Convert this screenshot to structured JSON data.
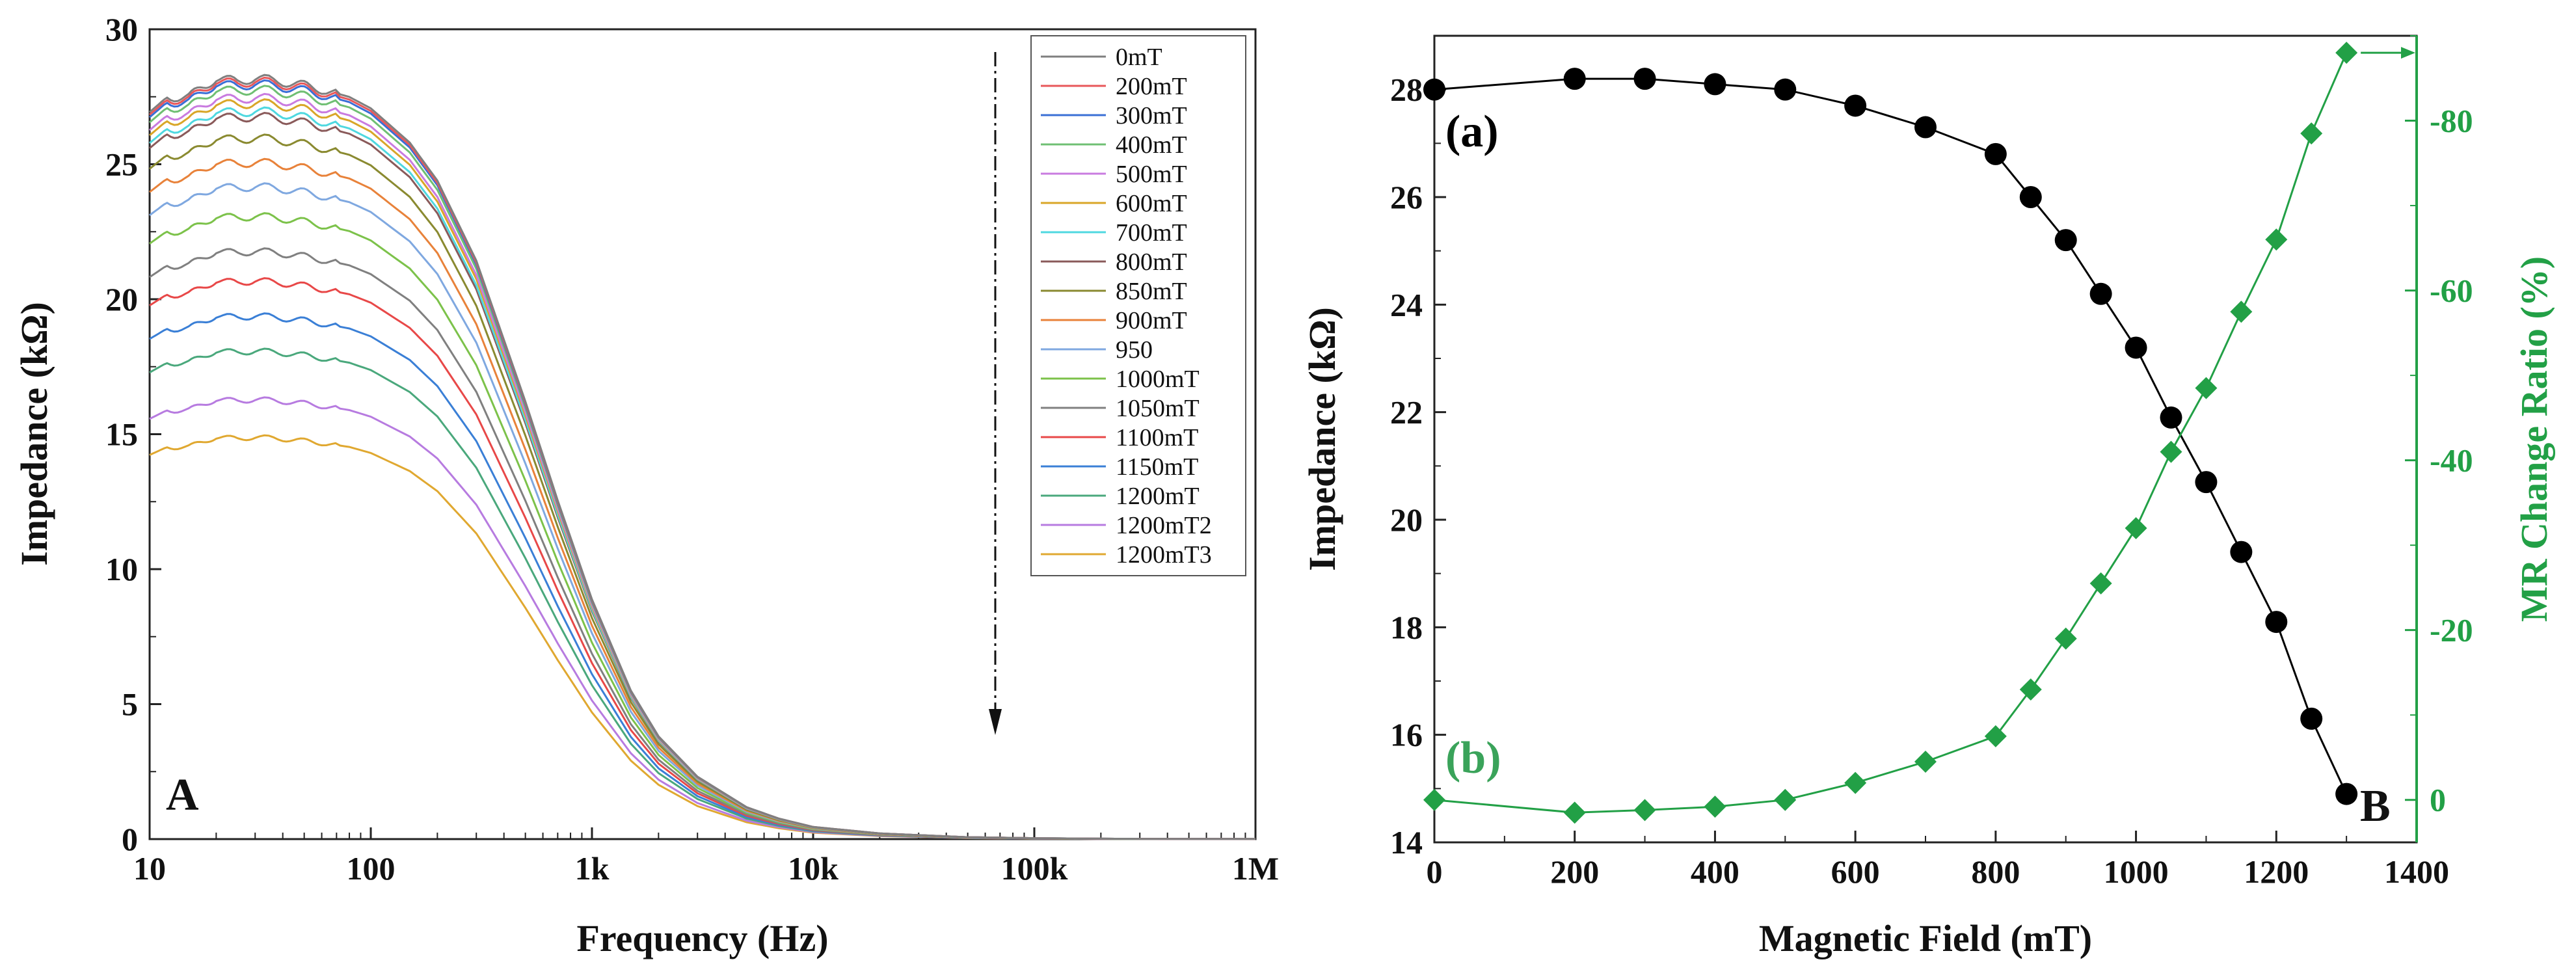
{
  "chart_data": [
    {
      "id": "A",
      "type": "line",
      "panel_label": "A",
      "xlabel": "Frequency (Hz)",
      "ylabel": "Impedance (kΩ)",
      "xscale": "log",
      "xlim": [
        10,
        1000000
      ],
      "ylim": [
        0,
        30
      ],
      "xticks": [
        {
          "value": 10,
          "label": "10"
        },
        {
          "value": 100,
          "label": "100"
        },
        {
          "value": 1000,
          "label": "1k"
        },
        {
          "value": 10000,
          "label": "10k"
        },
        {
          "value": 100000,
          "label": "100k"
        },
        {
          "value": 1000000,
          "label": "1M"
        }
      ],
      "yticks": [
        0,
        5,
        10,
        15,
        20,
        25,
        30
      ],
      "legend_position": "top-right",
      "arrow_direction": "down",
      "x": [
        10,
        12,
        15,
        18,
        20,
        25,
        30,
        40,
        50,
        60,
        80,
        100,
        150,
        200,
        300,
        500,
        700,
        1000,
        1500,
        2000,
        3000,
        5000,
        7000,
        10000,
        20000,
        50000,
        100000,
        200000,
        500000,
        1000000
      ],
      "shape": [
        0.955,
        0.975,
        0.975,
        0.99,
        1.0,
        0.995,
        1.0,
        0.995,
        0.99,
        0.985,
        0.975,
        0.96,
        0.915,
        0.865,
        0.76,
        0.575,
        0.445,
        0.315,
        0.195,
        0.135,
        0.082,
        0.042,
        0.027,
        0.016,
        0.0075,
        0.0025,
        0.0012,
        0.0005,
        0.0002,
        0.0001
      ],
      "series": [
        {
          "name": "0mT",
          "color": "#7f7f7f",
          "peak": 28.2
        },
        {
          "name": "200mT",
          "color": "#e8575a",
          "peak": 28.1
        },
        {
          "name": "300mT",
          "color": "#3a6fd6",
          "peak": 28.0
        },
        {
          "name": "400mT",
          "color": "#6fbf73",
          "peak": 27.8
        },
        {
          "name": "500mT",
          "color": "#c97be0",
          "peak": 27.5
        },
        {
          "name": "600mT",
          "color": "#d9a628",
          "peak": 27.3
        },
        {
          "name": "700mT",
          "color": "#4fd8e0",
          "peak": 27.0
        },
        {
          "name": "800mT",
          "color": "#8a5a5a",
          "peak": 26.8
        },
        {
          "name": "850mT",
          "color": "#8a8a30",
          "peak": 26.0
        },
        {
          "name": "900mT",
          "color": "#e8823a",
          "peak": 25.1
        },
        {
          "name": "950",
          "color": "#7fa8e0",
          "peak": 24.2
        },
        {
          "name": "1000mT",
          "color": "#7cc24a",
          "peak": 23.1
        },
        {
          "name": "1050mT",
          "color": "#808080",
          "peak": 21.8
        },
        {
          "name": "1100mT",
          "color": "#e84848",
          "peak": 20.7
        },
        {
          "name": "1150mT",
          "color": "#3a7fd6",
          "peak": 19.4
        },
        {
          "name": "1200mT",
          "color": "#4aa87c",
          "peak": 18.1
        },
        {
          "name": "1200mT2",
          "color": "#b77be0",
          "peak": 16.3
        },
        {
          "name": "1200mT3",
          "color": "#e0a830",
          "peak": 14.9
        }
      ]
    },
    {
      "id": "B",
      "type": "scatter",
      "panel_label": "B",
      "xlabel": "Magnetic Field (mT)",
      "xlim": [
        0,
        1400
      ],
      "xticks": [
        0,
        200,
        400,
        600,
        800,
        1000,
        1200,
        1400
      ],
      "left_axis": {
        "label": "Impedance (kΩ)",
        "ylim": [
          14,
          29
        ],
        "ticks": [
          14,
          16,
          18,
          20,
          22,
          24,
          26,
          28
        ],
        "color": "#111111"
      },
      "right_axis": {
        "label": "MR Change Ratio (%)",
        "ylim": [
          5,
          -90
        ],
        "ticks": [
          0,
          -20,
          -40,
          -60,
          -80
        ],
        "tick_labels": [
          "0",
          "-20",
          "-40",
          "-60",
          "-80"
        ],
        "color": "#22a046"
      },
      "series": [
        {
          "name": "(a)",
          "axis": "left",
          "marker": "circle",
          "color": "#000000",
          "label_color": "#000000",
          "x": [
            0,
            200,
            300,
            400,
            500,
            600,
            700,
            800,
            850,
            900,
            950,
            1000,
            1050,
            1100,
            1150,
            1200,
            1250,
            1300
          ],
          "y": [
            28.0,
            28.2,
            28.2,
            28.1,
            28.0,
            27.7,
            27.3,
            26.8,
            26.0,
            25.2,
            24.2,
            23.2,
            21.9,
            20.7,
            19.4,
            18.1,
            16.3,
            14.9
          ]
        },
        {
          "name": "(b)",
          "axis": "right",
          "marker": "diamond",
          "color": "#22a046",
          "label_color": "#3aa35a",
          "x": [
            0,
            200,
            300,
            400,
            500,
            600,
            700,
            800,
            850,
            900,
            950,
            1000,
            1050,
            1100,
            1150,
            1200,
            1250,
            1300
          ],
          "y": [
            0,
            1.5,
            1.2,
            0.8,
            0,
            -2,
            -4.5,
            -7.5,
            -13,
            -19,
            -25.5,
            -32,
            -41,
            -48.5,
            -57.5,
            -66,
            -78.5,
            -88
          ]
        }
      ]
    }
  ]
}
